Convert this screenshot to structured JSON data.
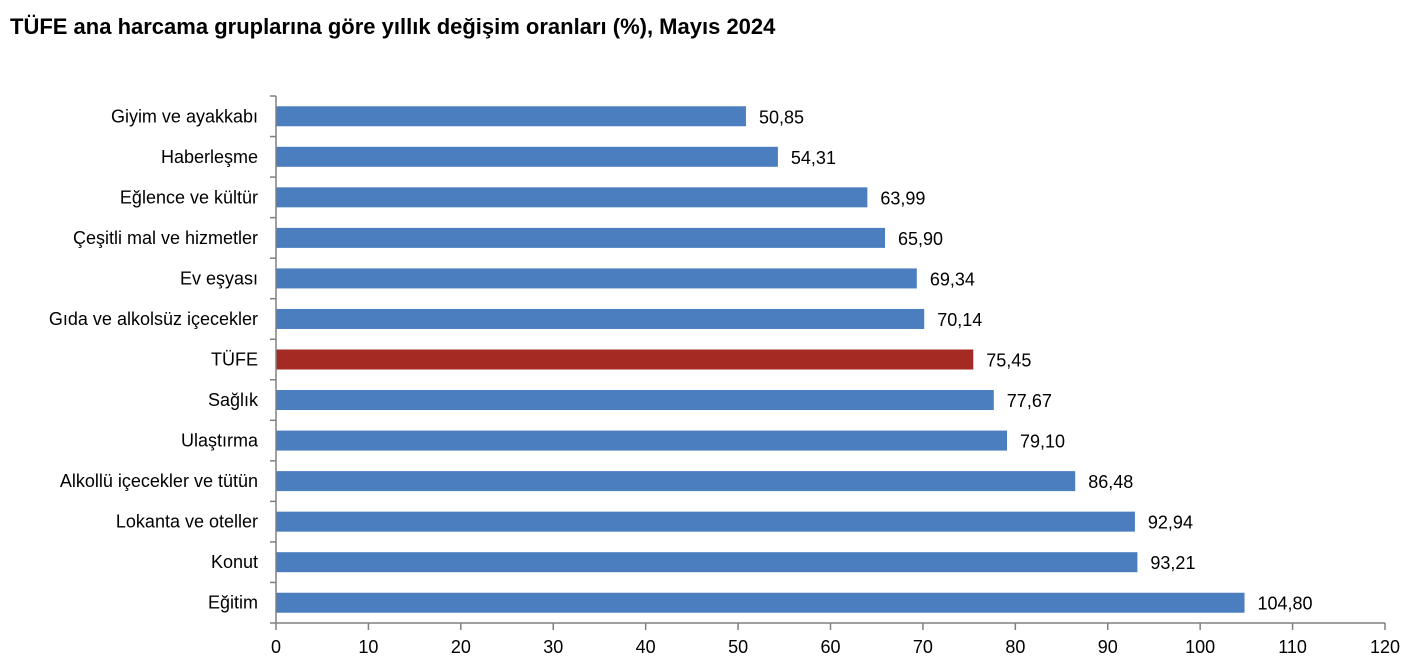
{
  "chart_data": {
    "type": "bar",
    "orientation": "horizontal",
    "title": "TÜFE ana harcama gruplarına göre yıllık değişim oranları (%), Mayıs 2024",
    "categories": [
      "Giyim ve ayakkabı",
      "Haberleşme",
      "Eğlence ve kültür",
      "Çeşitli mal ve hizmetler",
      "Ev eşyası",
      "Gıda ve alkolsüz içecekler",
      "TÜFE",
      "Sağlık",
      "Ulaştırma",
      "Alkollü içecekler ve tütün",
      "Lokanta ve oteller",
      "Konut",
      "Eğitim"
    ],
    "values": [
      50.85,
      54.31,
      63.99,
      65.9,
      69.34,
      70.14,
      75.45,
      77.67,
      79.1,
      86.48,
      92.94,
      93.21,
      104.8
    ],
    "value_labels": [
      "50,85",
      "54,31",
      "63,99",
      "65,90",
      "69,34",
      "70,14",
      "75,45",
      "77,67",
      "79,10",
      "86,48",
      "92,94",
      "93,21",
      "104,80"
    ],
    "highlight_category": "TÜFE",
    "xlim": [
      0,
      120
    ],
    "xticks": [
      0,
      10,
      20,
      30,
      40,
      50,
      60,
      70,
      80,
      90,
      100,
      110,
      120
    ],
    "xlabel": "",
    "ylabel": "",
    "grid": false,
    "legend": "none",
    "colors": {
      "bar": "#4a7ebf",
      "highlight": "#a52a24",
      "axis": "#808080"
    }
  }
}
